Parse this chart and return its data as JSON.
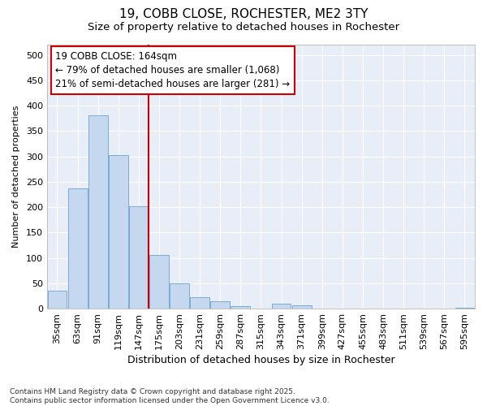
{
  "title1": "19, COBB CLOSE, ROCHESTER, ME2 3TY",
  "title2": "Size of property relative to detached houses in Rochester",
  "xlabel": "Distribution of detached houses by size in Rochester",
  "ylabel": "Number of detached properties",
  "categories": [
    "35sqm",
    "63sqm",
    "91sqm",
    "119sqm",
    "147sqm",
    "175sqm",
    "203sqm",
    "231sqm",
    "259sqm",
    "287sqm",
    "315sqm",
    "343sqm",
    "371sqm",
    "399sqm",
    "427sqm",
    "455sqm",
    "483sqm",
    "511sqm",
    "539sqm",
    "567sqm",
    "595sqm"
  ],
  "values": [
    35,
    237,
    381,
    302,
    201,
    106,
    49,
    22,
    14,
    5,
    0,
    9,
    7,
    0,
    0,
    0,
    0,
    0,
    0,
    0,
    2
  ],
  "bar_color": "#c5d8f0",
  "bar_edge_color": "#7aaad4",
  "vline_color": "#cc0000",
  "annotation_text": "19 COBB CLOSE: 164sqm\n← 79% of detached houses are smaller (1,068)\n21% of semi-detached houses are larger (281) →",
  "annotation_box_color": "#ffffff",
  "annotation_box_edge": "#cc0000",
  "ylim": [
    0,
    520
  ],
  "yticks": [
    0,
    50,
    100,
    150,
    200,
    250,
    300,
    350,
    400,
    450,
    500
  ],
  "figure_bg": "#ffffff",
  "axes_bg": "#e8eef8",
  "grid_color": "#ffffff",
  "footnote": "Contains HM Land Registry data © Crown copyright and database right 2025.\nContains public sector information licensed under the Open Government Licence v3.0.",
  "title1_fontsize": 11,
  "title2_fontsize": 9.5,
  "xlabel_fontsize": 9,
  "ylabel_fontsize": 8,
  "tick_fontsize": 8,
  "annotation_fontsize": 8.5,
  "footnote_fontsize": 6.5
}
